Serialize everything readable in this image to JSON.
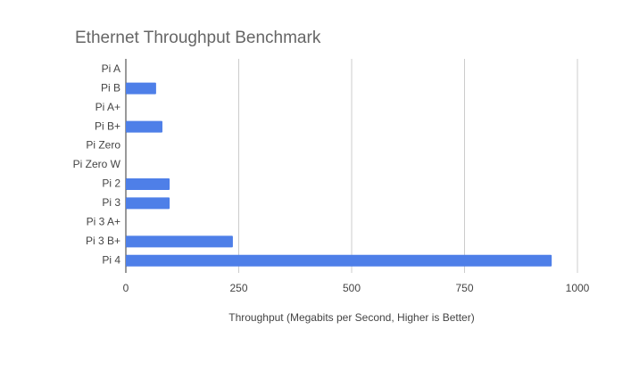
{
  "chart_data": {
    "type": "bar",
    "orientation": "horizontal",
    "title": "Ethernet Throughput Benchmark",
    "x_label": "Throughput (Megabits per Second, Higher is Better)",
    "categories": [
      "Pi A",
      "Pi B",
      "Pi A+",
      "Pi B+",
      "Pi Zero",
      "Pi Zero W",
      "Pi 2",
      "Pi 3",
      "Pi 3 A+",
      "Pi 3 B+",
      "Pi 4"
    ],
    "values": [
      0,
      67,
      0,
      81,
      0,
      0,
      97,
      97,
      0,
      237,
      943
    ],
    "color": "#4e7fe8",
    "xlim": [
      0,
      1000
    ],
    "xticks": [
      0,
      250,
      500,
      750,
      1000
    ],
    "grid": true
  }
}
